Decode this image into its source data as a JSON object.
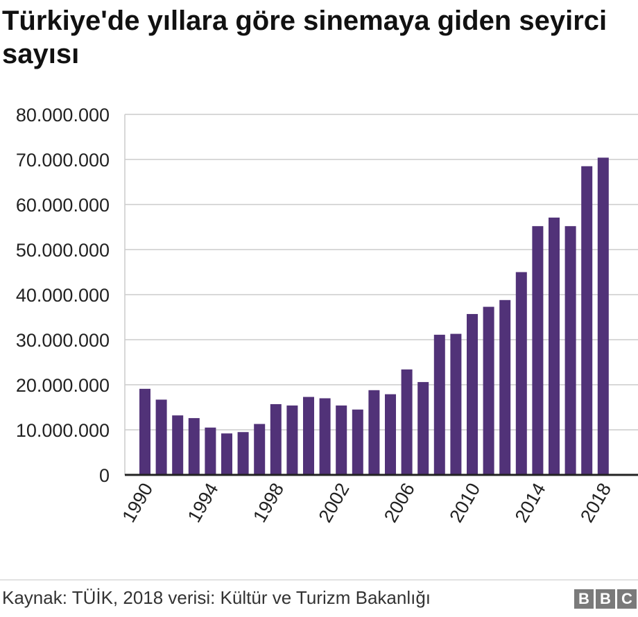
{
  "title": "Türkiye'de yıllara göre sinemaya giden seyirci sayısı",
  "source": "Kaynak: TÜİK, 2018 verisi: Kültür ve Turizm Bakanlığı",
  "logo": {
    "letters": [
      "B",
      "B",
      "C"
    ]
  },
  "colors": {
    "bar": "#513278",
    "grid": "#cccccc",
    "axis": "#222222",
    "text": "#222222"
  },
  "chart_data": {
    "type": "bar",
    "title": "Türkiye'de yıllara göre sinemaya giden seyirci sayısı",
    "xlabel": "",
    "ylabel": "",
    "ylim": [
      0,
      80000000
    ],
    "grid": true,
    "yticks": [
      0,
      10000000,
      20000000,
      30000000,
      40000000,
      50000000,
      60000000,
      70000000,
      80000000
    ],
    "ytick_labels": [
      "0",
      "10.000.000",
      "20.000.000",
      "30.000.000",
      "40.000.000",
      "50.000.000",
      "60.000.000",
      "70.000.000",
      "80.000.000"
    ],
    "xtick_labels": [
      "1990",
      "1994",
      "1998",
      "2002",
      "2006",
      "2010",
      "2014",
      "2018"
    ],
    "categories": [
      "1990",
      "1991",
      "1992",
      "1993",
      "1994",
      "1995",
      "1996",
      "1997",
      "1998",
      "1999",
      "2000",
      "2001",
      "2002",
      "2003",
      "2004",
      "2005",
      "2006",
      "2007",
      "2008",
      "2009",
      "2010",
      "2011",
      "2012",
      "2013",
      "2014",
      "2015",
      "2016",
      "2017",
      "2018"
    ],
    "values": [
      19100000,
      16700000,
      13200000,
      12600000,
      10500000,
      9200000,
      9500000,
      11300000,
      15700000,
      15400000,
      17300000,
      17000000,
      15400000,
      14500000,
      18800000,
      17900000,
      23400000,
      20600000,
      31100000,
      31300000,
      35700000,
      37300000,
      38800000,
      45000000,
      55200000,
      57100000,
      55200000,
      68500000,
      70400000
    ]
  }
}
